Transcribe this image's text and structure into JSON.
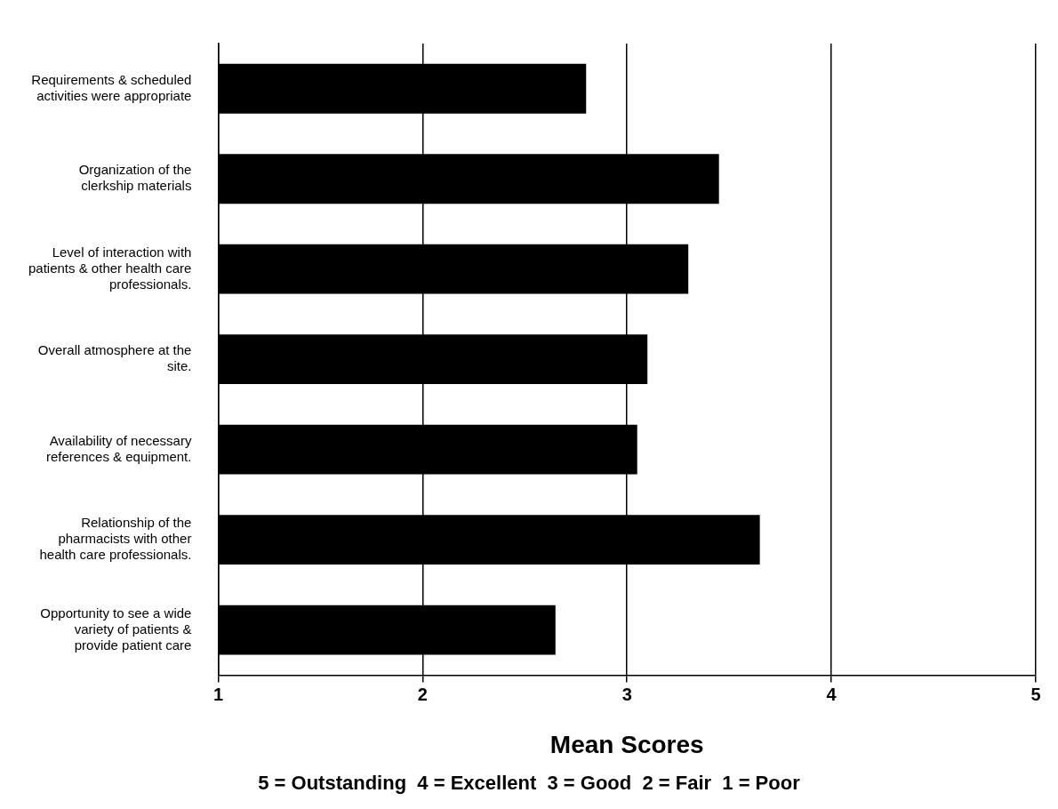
{
  "chart_data": {
    "type": "bar",
    "orientation": "horizontal",
    "xlabel": "Mean Scores",
    "categories": [
      "Requirements & scheduled activities were appropriate",
      "Organization of the clerkship materials",
      "Level of interaction with patients & other health care professionals.",
      "Overall atmosphere at the site.",
      "Availability of necessary references & equipment.",
      "Relationship of the pharmacists with other health care professionals.",
      "Opportunity to see a wide variety of patients & provide patient care"
    ],
    "values": [
      2.8,
      3.45,
      3.3,
      3.1,
      3.05,
      3.65,
      2.65
    ],
    "color": "#000000",
    "xlim": [
      1,
      5
    ],
    "xticks": [
      1,
      2,
      3,
      4,
      5
    ],
    "grid": "x",
    "annotations": [
      "5 = Outstanding  4 = Excellent  3 = Good  2 = Fair  1 = Poor"
    ]
  }
}
